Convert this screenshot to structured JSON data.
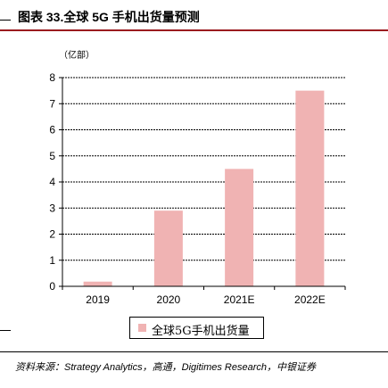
{
  "figure": {
    "title": "图表 33.全球 5G 手机出货量预测",
    "unit": "（亿部）",
    "source": "资料来源：Strategy Analytics，高通，Digitimes Research，中银证券"
  },
  "chart_data": {
    "type": "bar",
    "categories": [
      "2019",
      "2020",
      "2021E",
      "2022E"
    ],
    "series": [
      {
        "name": "全球5G手机出货量",
        "values": [
          0.18,
          2.9,
          4.5,
          7.5
        ],
        "color": "#f0b3b3"
      }
    ],
    "ylim": [
      0,
      8
    ],
    "yticks": [
      0,
      1,
      2,
      3,
      4,
      5,
      6,
      7,
      8
    ],
    "grid": true,
    "legend": "bottom-center"
  }
}
